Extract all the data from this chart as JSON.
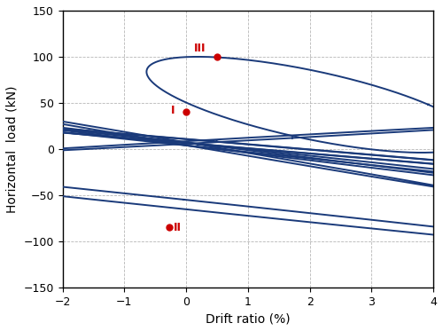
{
  "xlabel": "Drift ratio (%)",
  "ylabel": "Horizontal  load (kN)",
  "xlim": [
    -2,
    4
  ],
  "ylim": [
    -150,
    150
  ],
  "xticks": [
    -2,
    -1,
    0,
    1,
    2,
    3,
    4
  ],
  "yticks": [
    -150,
    -100,
    -50,
    0,
    50,
    100,
    150
  ],
  "line_color": "#1a3a7a",
  "marker_color": "#cc0000",
  "point_I": [
    0.0,
    40.0
  ],
  "point_II": [
    -0.28,
    -85.0
  ],
  "point_III": [
    0.5,
    100.0
  ],
  "grid_color": "#aaaaaa",
  "bg_color": "#ffffff",
  "lw": 1.4
}
